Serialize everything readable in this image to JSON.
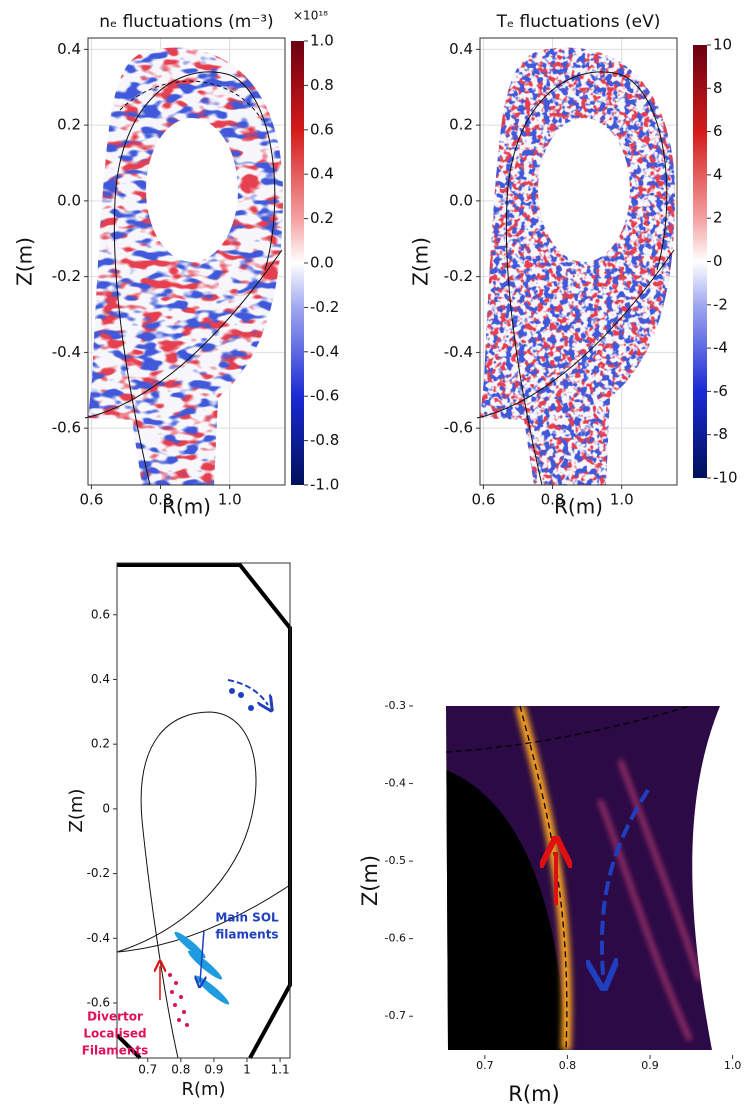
{
  "chart_data": [
    {
      "type": "heatmap",
      "title": "nₑ fluctuations  (m⁻³)",
      "xlabel": "R(m)",
      "ylabel": "Z(m)",
      "xlim": [
        0.59,
        1.16
      ],
      "ylim": [
        -0.75,
        0.43
      ],
      "xticks": [
        0.6,
        0.8,
        {
          "value": 1,
          "label": "1.0"
        }
      ],
      "yticks": [
        0.4,
        0.2,
        {
          "value": 0,
          "label": "0.0"
        },
        -0.2,
        -0.4,
        -0.6
      ],
      "grid": true,
      "frame": true,
      "colorbar": {
        "lim": [
          -1,
          1
        ],
        "multiplier": "×10¹⁸",
        "ticks": [
          {
            "value": 1,
            "label": "1.0"
          },
          0.8,
          0.6,
          0.4,
          0.2,
          {
            "value": 0,
            "label": "0.0"
          },
          -0.2,
          -0.4,
          -0.6,
          -0.8,
          {
            "value": -1,
            "label": "-1.0"
          }
        ]
      }
    },
    {
      "type": "heatmap",
      "title": "Tₑ fluctuations  (eV)",
      "xlabel": "R(m)",
      "ylabel": "Z(m)",
      "xlim": [
        0.59,
        1.16
      ],
      "ylim": [
        -0.75,
        0.43
      ],
      "xticks": [
        0.6,
        0.8,
        {
          "value": 1,
          "label": "1.0"
        }
      ],
      "yticks": [
        0.4,
        0.2,
        {
          "value": 0,
          "label": "0.0"
        },
        -0.2,
        -0.4,
        -0.6
      ],
      "grid": true,
      "frame": true,
      "colorbar": {
        "lim": [
          -10,
          10
        ],
        "ticks": [
          10,
          8,
          6,
          4,
          2,
          0,
          -2,
          -4,
          -6,
          -8,
          -10
        ]
      }
    },
    {
      "type": "diagram",
      "xlabel": "R(m)",
      "ylabel": "Z(m)",
      "xlim": [
        0.607,
        1.13
      ],
      "ylim": [
        -0.77,
        0.76
      ],
      "xticks": [
        0.7,
        0.8,
        0.9,
        1,
        1.1
      ],
      "yticks": [
        0.6,
        0.4,
        0.2,
        0,
        -0.2,
        -0.4,
        -0.6
      ],
      "grid": false,
      "frame": true,
      "annotations": [
        {
          "lines": [
            "Main SOL",
            "filaments"
          ],
          "color": "#1f3fbf"
        },
        {
          "lines": [
            "Divertor",
            "Localised",
            "Filaments"
          ],
          "color": "#e0105a"
        }
      ]
    },
    {
      "type": "heatmap",
      "xlabel": "R(m)",
      "ylabel": "Z(m)",
      "xlim": [
        0.613,
        1.015
      ],
      "ylim": [
        -0.75,
        -0.3
      ],
      "xticks": [
        0.7,
        0.8,
        0.9,
        {
          "value": 1,
          "label": "1.0"
        }
      ],
      "yticks": [
        -0.3,
        -0.4,
        -0.5,
        -0.6,
        -0.7
      ],
      "grid": false,
      "frame": false
    }
  ]
}
